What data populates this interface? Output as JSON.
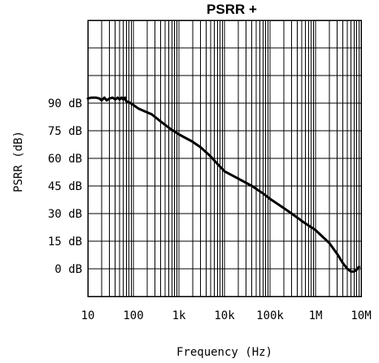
{
  "chart_data": {
    "type": "line",
    "title": "PSRR +",
    "xlabel": "Frequency (Hz)",
    "ylabel": "PSRR (dB)",
    "x_scale": "log",
    "xlim": [
      10,
      10000000
    ],
    "ylim": [
      -15,
      135
    ],
    "grid": true,
    "x_ticks": [
      {
        "value": 10,
        "label": "10"
      },
      {
        "value": 100,
        "label": "100"
      },
      {
        "value": 1000,
        "label": "1k"
      },
      {
        "value": 10000,
        "label": "10k"
      },
      {
        "value": 100000,
        "label": "100k"
      },
      {
        "value": 1000000,
        "label": "1M"
      },
      {
        "value": 10000000,
        "label": "10M"
      }
    ],
    "y_ticks": [
      {
        "value": 0,
        "label": "0 dB"
      },
      {
        "value": 15,
        "label": "15 dB"
      },
      {
        "value": 30,
        "label": "30 dB"
      },
      {
        "value": 45,
        "label": "45 dB"
      },
      {
        "value": 60,
        "label": "60 dB"
      },
      {
        "value": 75,
        "label": "75 dB"
      },
      {
        "value": 90,
        "label": "90 dB"
      }
    ],
    "y_grid_values": [
      -15,
      0,
      15,
      30,
      45,
      60,
      75,
      90,
      105,
      120,
      135
    ],
    "series": [
      {
        "color": "#000000",
        "points": [
          [
            10,
            92.5
          ],
          [
            12,
            93
          ],
          [
            15,
            93
          ],
          [
            18,
            92.5
          ],
          [
            20,
            91.5
          ],
          [
            23,
            93
          ],
          [
            26,
            91.5
          ],
          [
            30,
            92.5
          ],
          [
            35,
            93
          ],
          [
            40,
            92
          ],
          [
            45,
            93
          ],
          [
            50,
            92
          ],
          [
            55,
            93
          ],
          [
            60,
            92
          ],
          [
            65,
            93
          ],
          [
            70,
            91
          ],
          [
            80,
            90.5
          ],
          [
            100,
            89
          ],
          [
            130,
            87
          ],
          [
            180,
            85.5
          ],
          [
            250,
            84
          ],
          [
            400,
            80
          ],
          [
            700,
            75.5
          ],
          [
            1000,
            73
          ],
          [
            2000,
            69
          ],
          [
            3000,
            66
          ],
          [
            5000,
            61
          ],
          [
            7000,
            57
          ],
          [
            10000,
            53
          ],
          [
            20000,
            49
          ],
          [
            40000,
            45
          ],
          [
            70000,
            41
          ],
          [
            100000,
            38
          ],
          [
            200000,
            33
          ],
          [
            300000,
            30
          ],
          [
            500000,
            26
          ],
          [
            1000000,
            21
          ],
          [
            2000000,
            14
          ],
          [
            3000000,
            8
          ],
          [
            4000000,
            3
          ],
          [
            5000000,
            0
          ],
          [
            6000000,
            -1.5
          ],
          [
            7000000,
            -1.5
          ],
          [
            8000000,
            -0.5
          ],
          [
            9000000,
            1
          ]
        ]
      }
    ]
  }
}
